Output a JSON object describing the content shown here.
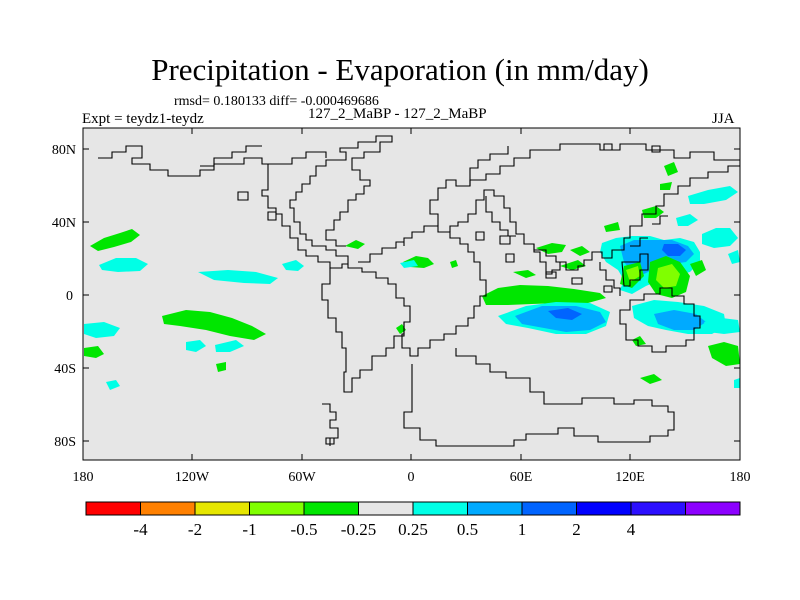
{
  "title": "Precipitation - Evaporation (in mm/day)",
  "stats": "rmsd= 0.180133 diff= -0.000469686",
  "expt_label": "Expt = teydz1-teydz",
  "expt_name": "127_2_MaBP - 127_2_MaBP",
  "season": "JJA",
  "lat_ticks": [
    "80N",
    "40N",
    "0",
    "40S",
    "80S"
  ],
  "lon_ticks": [
    "180",
    "120W",
    "60W",
    "0",
    "60E",
    "120E",
    "180"
  ],
  "colors": {
    "background": "#e6e6e6",
    "land_outline": "#000000"
  },
  "colorbar": {
    "colors": [
      "#ff0000",
      "#ff8000",
      "#e6e600",
      "#80ff00",
      "#00e600",
      "#e6e6e6",
      "#00ffe6",
      "#00aaff",
      "#0064ff",
      "#0000ff",
      "#2c0fff",
      "#8c00ff"
    ],
    "labels": [
      "-4",
      "-2",
      "-1",
      "-0.5",
      "-0.25",
      "0.25",
      "0.5",
      "1",
      "2",
      "4"
    ]
  }
}
